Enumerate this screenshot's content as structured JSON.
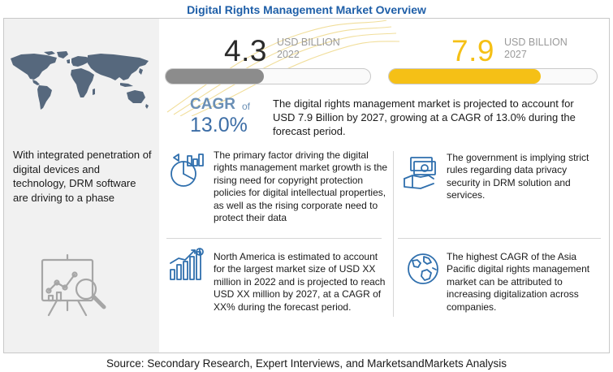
{
  "title": "Digital Rights Management Market Overview",
  "left_panel": {
    "text": "With integrated penetration of digital devices and technology, DRM software are driving to a phase"
  },
  "stats": {
    "start": {
      "value": "4.3",
      "unit": "USD BILLION",
      "year": "2022",
      "color": "#2b2b2b",
      "bar_fill_fraction": 0.48,
      "bar_color": "#8c8c8c"
    },
    "end": {
      "value": "7.9",
      "unit": "USD BILLION",
      "year": "2027",
      "color": "#f5c016",
      "bar_fill_fraction": 0.73,
      "bar_color": "#f5c016"
    }
  },
  "cagr": {
    "label": "CAGR",
    "of": "of",
    "value": "13.0%",
    "text": "The digital rights management market is projected to account for USD 7.9 Billion by 2027, growing at a CAGR of 13.0% during the forecast period."
  },
  "points": [
    {
      "icon": "policy-chart-icon",
      "text": "The primary factor driving the digital rights management market growth is the rising need for copyright protection policies for digital intellectual properties, as well as the rising corporate need to protect their data"
    },
    {
      "icon": "government-money-icon",
      "text": "The government is implying strict rules regarding data privacy security in DRM solution and services."
    },
    {
      "icon": "growth-chart-icon",
      "text": "North America is estimated to account for the largest market size of USD XX million in 2022 and is projected to reach USD XX million by 2027, at a CAGR of XX% during the forecast period."
    },
    {
      "icon": "globe-icon",
      "text": "The highest CAGR of the Asia Pacific digital rights management market can be attributed to increasing digitalization across companies."
    }
  ],
  "source": "Source: Secondary Research, Expert Interviews, and MarketsandMarkets Analysis",
  "colors": {
    "title": "#1f5fa8",
    "accent": "#f5c016",
    "icon_blue": "#2f6fad"
  }
}
